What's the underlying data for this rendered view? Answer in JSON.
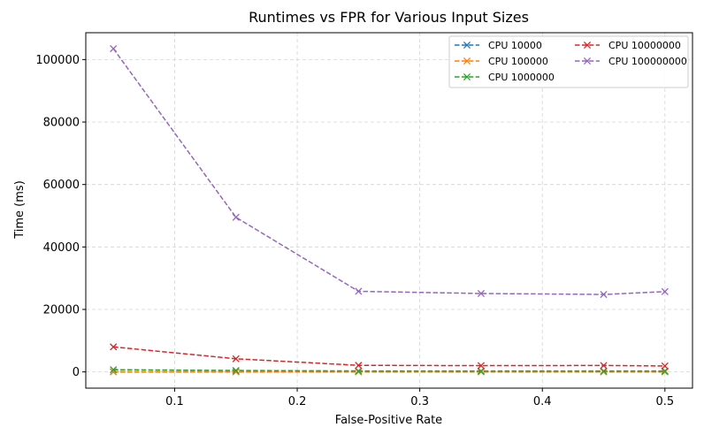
{
  "chart_data": {
    "type": "line",
    "title": "Runtimes vs FPR for Various Input Sizes",
    "xlabel": "False-Positive Rate",
    "ylabel": "Time (ms)",
    "x": [
      0.05,
      0.15,
      0.25,
      0.35,
      0.45,
      0.5
    ],
    "xlim": [
      0.0275,
      0.5225
    ],
    "ylim": [
      -5200,
      108600
    ],
    "xticks": [
      0.1,
      0.2,
      0.3,
      0.4,
      0.5
    ],
    "xtick_labels": [
      "0.1",
      "0.2",
      "0.3",
      "0.4",
      "0.5"
    ],
    "yticks": [
      0,
      20000,
      40000,
      60000,
      80000,
      100000
    ],
    "ytick_labels": [
      "0",
      "20000",
      "40000",
      "60000",
      "80000",
      "100000"
    ],
    "grid": true,
    "legend_position": "top-right",
    "series": [
      {
        "name": "CPU 10000",
        "color": "#1f77b4",
        "values": [
          15,
          10,
          10,
          10,
          10,
          10
        ]
      },
      {
        "name": "CPU 100000",
        "color": "#ff7f0e",
        "values": [
          60,
          40,
          30,
          30,
          30,
          30
        ]
      },
      {
        "name": "CPU 1000000",
        "color": "#2ca02c",
        "values": [
          700,
          450,
          300,
          280,
          270,
          280
        ]
      },
      {
        "name": "CPU 10000000",
        "color": "#d62728",
        "values": [
          8000,
          4200,
          2100,
          2000,
          2050,
          1900
        ]
      },
      {
        "name": "CPU 100000000",
        "color": "#9467bd",
        "values": [
          103500,
          49500,
          25800,
          25100,
          24800,
          25700
        ]
      }
    ]
  }
}
